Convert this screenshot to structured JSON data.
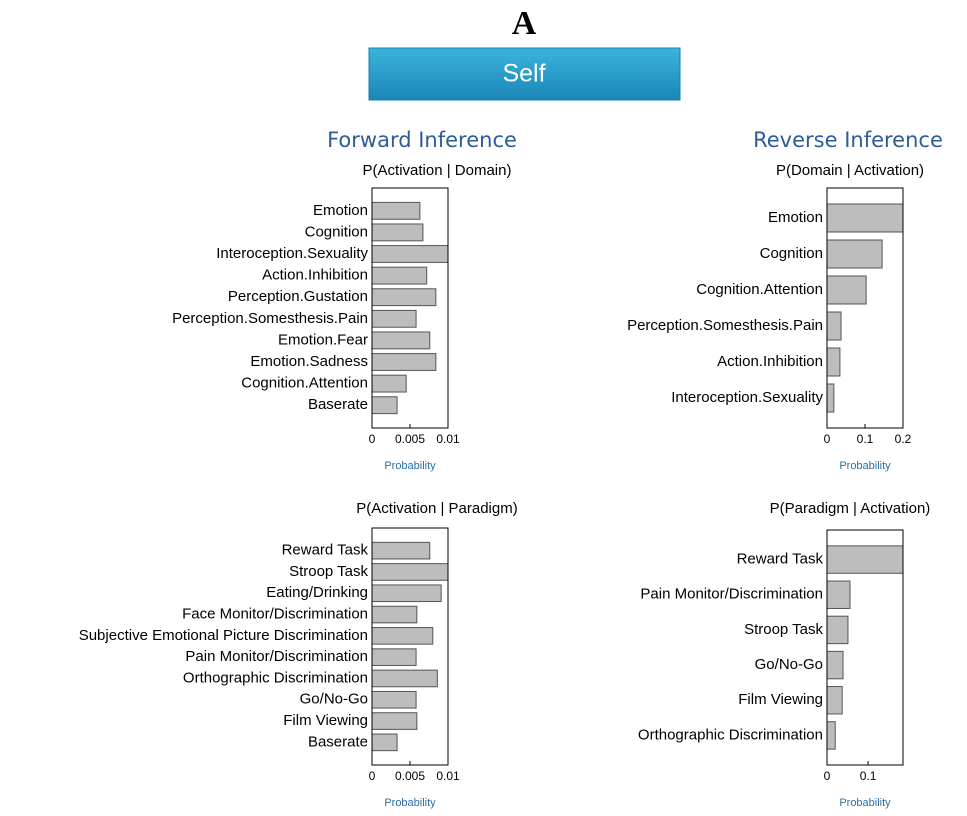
{
  "panel_label": "A",
  "group_label": "Self",
  "column_titles": [
    "Forward Inference",
    "Reverse Inference"
  ],
  "chart_data": [
    {
      "type": "bar",
      "orientation": "horizontal",
      "title": "P(Activation | Domain)",
      "xlabel": "Probability",
      "categories": [
        "Emotion",
        "Cognition",
        "Interoception.Sexuality",
        "Action.Inhibition",
        "Perception.Gustation",
        "Perception.Somesthesis.Pain",
        "Emotion.Fear",
        "Emotion.Sadness",
        "Cognition.Attention",
        "Baserate"
      ],
      "values": [
        0.0063,
        0.0067,
        0.01,
        0.0072,
        0.0084,
        0.0058,
        0.0076,
        0.0084,
        0.0045,
        0.0033
      ],
      "xlim": [
        0,
        0.01
      ],
      "xticks": [
        0,
        0.005,
        0.01
      ],
      "color": "#bdbdbd"
    },
    {
      "type": "bar",
      "orientation": "horizontal",
      "title": "P(Domain | Activation)",
      "xlabel": "Probability",
      "categories": [
        "Emotion",
        "Cognition",
        "Cognition.Attention",
        "Perception.Somesthesis.Pain",
        "Action.Inhibition",
        "Interoception.Sexuality"
      ],
      "values": [
        0.2,
        0.145,
        0.103,
        0.037,
        0.034,
        0.018
      ],
      "xlim": [
        0,
        0.2
      ],
      "xticks": [
        0,
        0.1,
        0.2
      ],
      "color": "#bdbdbd"
    },
    {
      "type": "bar",
      "orientation": "horizontal",
      "title": "P(Activation | Paradigm)",
      "xlabel": "Probability",
      "categories": [
        "Reward Task",
        "Stroop Task",
        "Eating/Drinking",
        "Face Monitor/Discrimination",
        "Subjective Emotional Picture Discrimination",
        "Pain Monitor/Discrimination",
        "Orthographic Discrimination",
        "Go/No-Go",
        "Film Viewing",
        "Baserate"
      ],
      "values": [
        0.0076,
        0.01,
        0.0091,
        0.0059,
        0.008,
        0.0058,
        0.0086,
        0.0058,
        0.0059,
        0.0033
      ],
      "xlim": [
        0,
        0.01
      ],
      "xticks": [
        0,
        0.005,
        0.01
      ],
      "color": "#bdbdbd"
    },
    {
      "type": "bar",
      "orientation": "horizontal",
      "title": "P(Paradigm | Activation)",
      "xlabel": "Probability",
      "categories": [
        "Reward Task",
        "Pain Monitor/Discrimination",
        "Stroop Task",
        "Go/No-Go",
        "Film Viewing",
        "Orthographic Discrimination"
      ],
      "values": [
        0.185,
        0.056,
        0.051,
        0.039,
        0.037,
        0.02
      ],
      "xlim": [
        0,
        0.185
      ],
      "xticks": [
        0,
        0.1
      ],
      "color": "#bdbdbd"
    }
  ]
}
